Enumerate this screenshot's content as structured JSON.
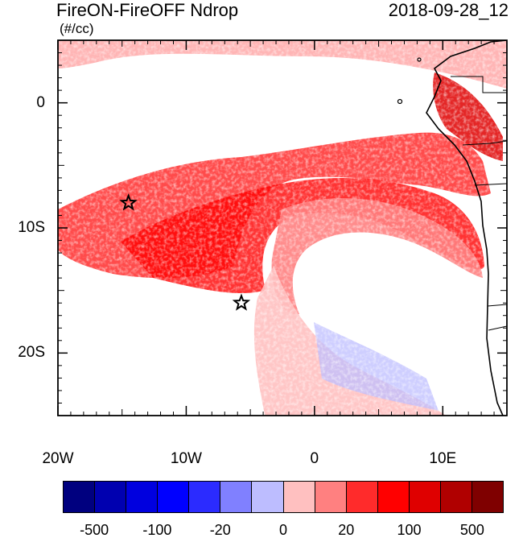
{
  "title": "FireON-FireOFF Ndrop",
  "date": "2018-09-28_12",
  "units": "(#/cc)",
  "map": {
    "lon_range": [
      -20,
      15
    ],
    "lat_range": [
      -25,
      5
    ],
    "lon_ticks": [
      {
        "value": -20,
        "label": "20W"
      },
      {
        "value": -10,
        "label": "10W"
      },
      {
        "value": 0,
        "label": "0"
      },
      {
        "value": 10,
        "label": "10E"
      }
    ],
    "lat_ticks": [
      {
        "value": 0,
        "label": "0"
      },
      {
        "value": -10,
        "label": "10S"
      },
      {
        "value": -20,
        "label": "20S"
      }
    ],
    "markers": [
      {
        "name": "star-marker",
        "lon": -14.5,
        "lat": -8.0
      },
      {
        "name": "star-marker",
        "lon": -5.7,
        "lat": -16.0
      }
    ]
  },
  "colorbar": {
    "colors": [
      "#00007f",
      "#0000b0",
      "#0000df",
      "#0000ff",
      "#2b2bff",
      "#8080ff",
      "#bdbdff",
      "#ffc0c0",
      "#ff8080",
      "#ff2b2b",
      "#ff0000",
      "#df0000",
      "#b00000",
      "#7f0000"
    ],
    "labels": [
      "-500",
      "-100",
      "-20",
      "0",
      "20",
      "100",
      "500"
    ]
  }
}
